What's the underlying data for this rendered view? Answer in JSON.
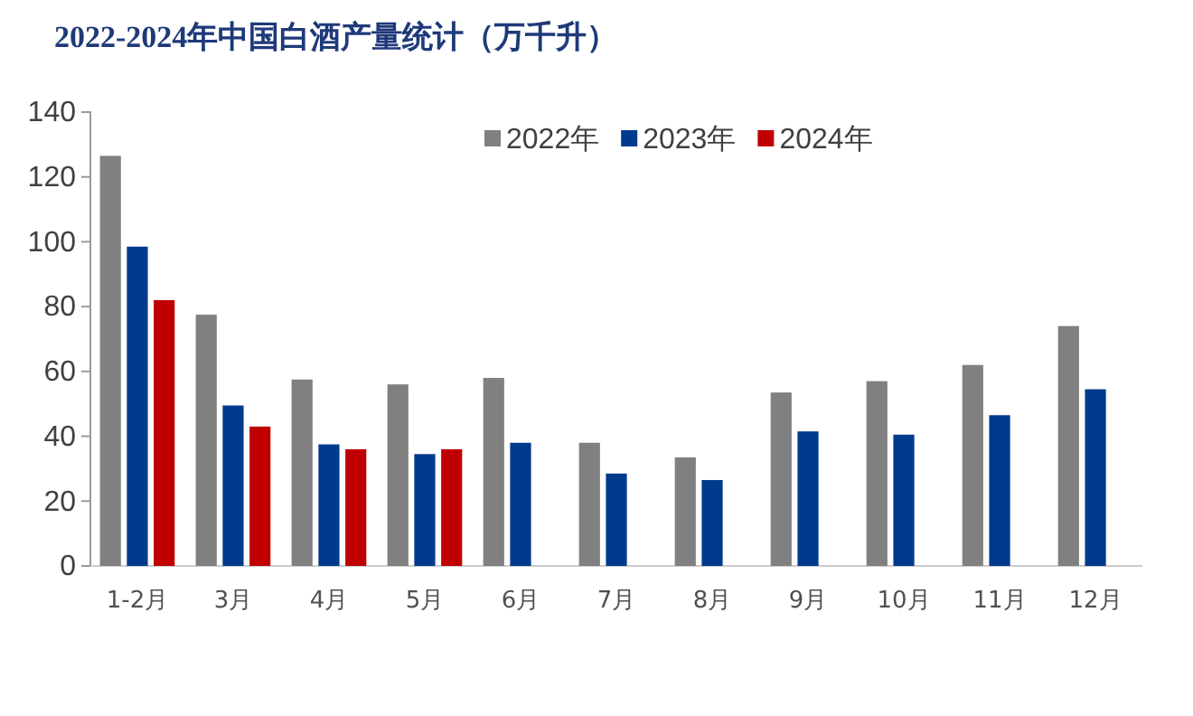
{
  "chart_data": {
    "type": "bar",
    "title": "2022-2024年中国白酒产量统计（万千升）",
    "categories": [
      "1-2月",
      "3月",
      "4月",
      "5月",
      "6月",
      "7月",
      "8月",
      "9月",
      "10月",
      "11月",
      "12月"
    ],
    "series": [
      {
        "name": "2022年",
        "color": "#808080",
        "values": [
          126.5,
          77.5,
          57.5,
          56,
          58,
          38,
          33.5,
          53.5,
          57,
          62,
          74
        ]
      },
      {
        "name": "2023年",
        "color": "#003a8c",
        "values": [
          98.5,
          49.5,
          37.5,
          34.5,
          38,
          28.5,
          26.5,
          41.5,
          40.5,
          46.5,
          54.5
        ]
      },
      {
        "name": "2024年",
        "color": "#c00000",
        "values": [
          82,
          43,
          36,
          36,
          null,
          null,
          null,
          null,
          null,
          null,
          null
        ]
      }
    ],
    "ylim": [
      0,
      140
    ],
    "yticks": [
      0,
      20,
      40,
      60,
      80,
      100,
      120,
      140
    ],
    "grid": false,
    "legend": "top right"
  }
}
